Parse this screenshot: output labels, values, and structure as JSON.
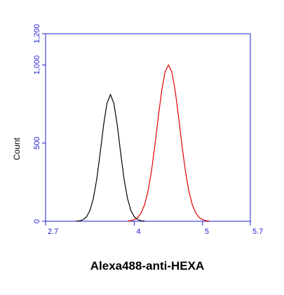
{
  "chart_data": {
    "type": "line",
    "x_label": "Alexa488-anti-HEXA",
    "y_label": "Count",
    "xlim": [
      2.7,
      5.7
    ],
    "xticks": [
      2.7,
      4,
      5,
      5.7
    ],
    "ylim": [
      0,
      1200
    ],
    "yticks": [
      0,
      500,
      {
        "value": 1000,
        "label": "1,000"
      },
      {
        "value": 1200,
        "label": "1,200"
      }
    ],
    "axis_color": "#1f1fd0",
    "series": [
      {
        "color": "#000000",
        "x": [
          3.15,
          3.2,
          3.25,
          3.3,
          3.35,
          3.4,
          3.45,
          3.5,
          3.55,
          3.6,
          3.65,
          3.7,
          3.75,
          3.8,
          3.85,
          3.9,
          3.95,
          4.0,
          4.05,
          4.1,
          4.15
        ],
        "values": [
          1,
          3,
          10,
          28,
          69,
          146,
          270,
          437,
          616,
          756,
          810,
          756,
          616,
          437,
          270,
          146,
          69,
          28,
          10,
          3,
          1
        ]
      },
      {
        "color": "#e00000",
        "x": [
          3.9,
          3.95,
          4.0,
          4.05,
          4.1,
          4.15,
          4.2,
          4.25,
          4.3,
          4.35,
          4.4,
          4.45,
          4.5,
          4.55,
          4.6,
          4.65,
          4.7,
          4.75,
          4.8,
          4.85,
          4.9,
          4.95,
          5.0,
          5.05,
          5.1
        ],
        "values": [
          1,
          4,
          10,
          24,
          53,
          105,
          191,
          317,
          480,
          662,
          832,
          955,
          1000,
          955,
          832,
          662,
          480,
          317,
          191,
          105,
          53,
          24,
          10,
          4,
          1
        ]
      }
    ]
  }
}
